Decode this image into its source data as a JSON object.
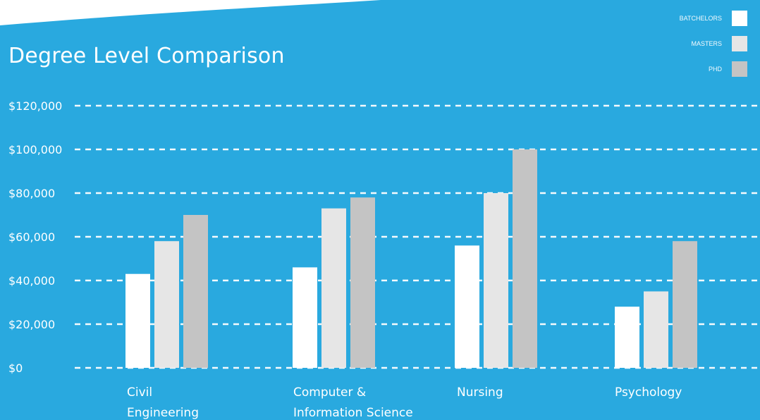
{
  "chart_data": {
    "type": "bar",
    "title": "Degree Level Comparison",
    "categories": [
      [
        "Civil",
        "Engineering"
      ],
      [
        "Computer &",
        "Information Science"
      ],
      [
        "Nursing"
      ],
      [
        "Psychology"
      ]
    ],
    "series": [
      {
        "name": "BATCHELORS",
        "color": "#ffffff",
        "values": [
          43000,
          46000,
          56000,
          28000
        ]
      },
      {
        "name": "MASTERS",
        "color": "#e6e6e6",
        "values": [
          58000,
          73000,
          80000,
          35000
        ]
      },
      {
        "name": "PHD",
        "color": "#c4c4c4",
        "values": [
          70000,
          78000,
          100000,
          58000
        ]
      }
    ],
    "yticks": [
      "$0",
      "$20,000",
      "$40,000",
      "$60,000",
      "$80,000",
      "$100,000",
      "$120,000"
    ],
    "ylim": [
      0,
      120000
    ],
    "grid": true,
    "grid_style": "dashed",
    "legend_position": "top-right",
    "background": "#29a9df"
  }
}
